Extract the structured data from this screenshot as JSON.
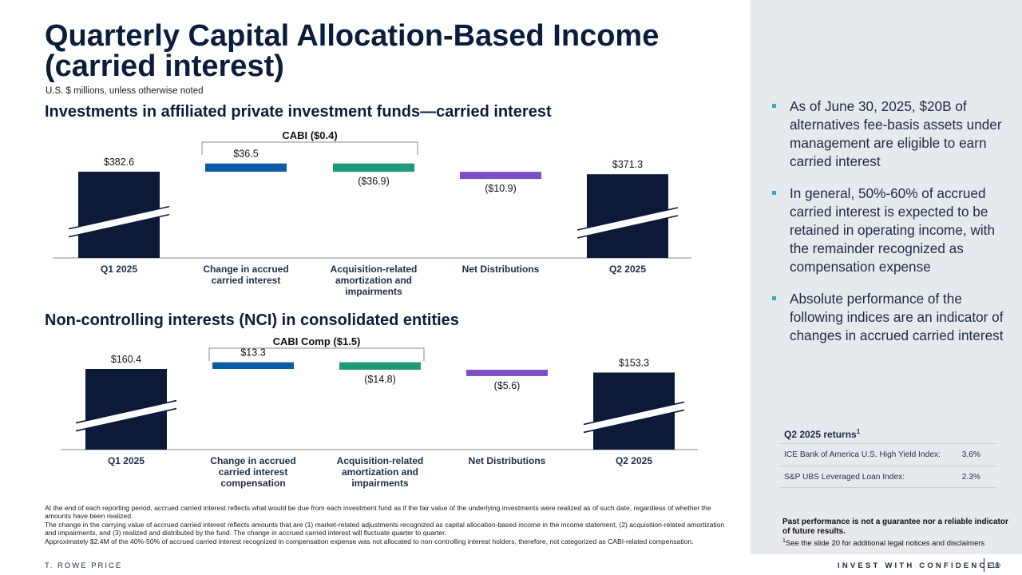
{
  "title_line1": "Quarterly Capital Allocation-Based Income",
  "title_line2": "(carried interest)",
  "units_note": "U.S. $ millions, unless otherwise noted",
  "section1_title": "Investments in affiliated private investment funds—carried interest",
  "section2_title": "Non-controlling interests (NCI) in consolidated entities",
  "chart_data": [
    {
      "type": "bar",
      "subtype": "waterfall",
      "title": "Investments in affiliated private investment funds—carried interest",
      "bracket_label": "CABI ($0.4)",
      "categories": [
        "Q1 2025",
        "Change in accrued carried interest",
        "Acquisition-related amortization and impairments",
        "Net Distributions",
        "Q2 2025"
      ],
      "values": [
        382.6,
        36.5,
        -36.9,
        -10.9,
        371.3
      ],
      "value_labels": [
        "$382.6",
        "$36.5",
        "($36.9)",
        "($10.9)",
        "$371.3"
      ],
      "colors": [
        "#0c1a38",
        "#0b5ba6",
        "#1e9a77",
        "#7b4fc8",
        "#0c1a38"
      ],
      "axis_break": true
    },
    {
      "type": "bar",
      "subtype": "waterfall",
      "title": "Non-controlling interests (NCI) in consolidated entities",
      "bracket_label": "CABI Comp ($1.5)",
      "categories": [
        "Q1 2025",
        "Change in accrued carried interest compensation",
        "Acquisition-related amortization and impairments",
        "Net Distributions",
        "Q2 2025"
      ],
      "values": [
        160.4,
        13.3,
        -14.8,
        -5.6,
        153.3
      ],
      "value_labels": [
        "$160.4",
        "$13.3",
        "($14.8)",
        "($5.6)",
        "$153.3"
      ],
      "colors": [
        "#0c1a38",
        "#0b5ba6",
        "#1e9a77",
        "#7b4fc8",
        "#0c1a38"
      ],
      "axis_break": true
    }
  ],
  "footnotes": [
    "At the end of each reporting period, accrued carried interest reflects what would be due from each investment fund as if the fair value of the underlying investments were realized as of such date, regardless of whether the amounts have been realized.",
    "The change in the carrying value of accrued carried interest reflects amounts that are (1) market-related adjustments recognized as capital allocation-based income in the income statement, (2) acquisition-related amortization and impairments, and (3) realized and distributed by the fund. The change in accrued carried interest will fluctuate quarter to quarter.",
    "Approximately $2.4M of the 40%-50% of accrued carried interest recognized in compensation expense was not allocated to non-controlling interest holders, therefore, not categorized as CABI-related compensation."
  ],
  "bullets": [
    "As of June 30, 2025, $20B of alternatives fee-basis assets under management are eligible to earn carried interest",
    "In general, 50%-60% of accrued carried interest is expected to be retained in operating income, with the remainder recognized as compensation expense",
    "Absolute performance of the following indices are an indicator of changes in accrued carried interest"
  ],
  "returns_table": {
    "title": "Q2 2025 returns",
    "title_sup": "1",
    "rows": [
      {
        "index": "ICE Bank of America U.S. High Yield Index:",
        "value": "3.6%"
      },
      {
        "index": "S&P UBS Leveraged Loan Index:",
        "value": "2.3%"
      }
    ]
  },
  "disclaimer": "Past performance is not a guarantee nor a reliable indicator of future results.",
  "disclaimer_note_sup": "1",
  "disclaimer_note": "See the slide 20 for additional legal notices and disclaimers",
  "brand_left": "T. ROWE PRICE",
  "brand_right": "INVEST WITH CONFIDENCE®",
  "page_number": "11"
}
